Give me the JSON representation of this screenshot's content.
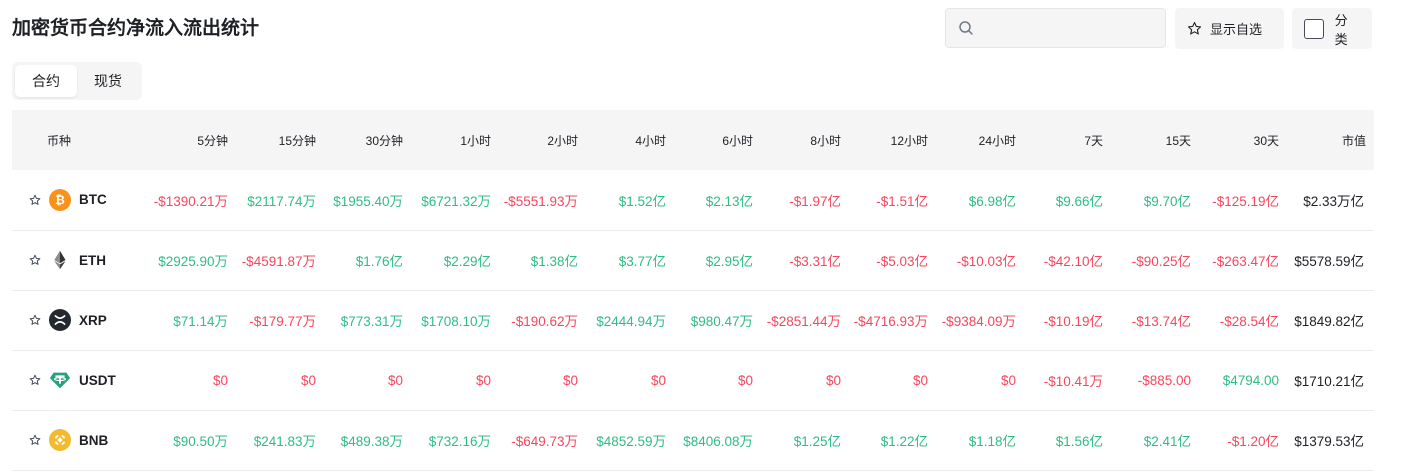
{
  "title": "加密货币合约净流入流出统计",
  "search": {
    "value": "",
    "placeholder": ""
  },
  "buttons": {
    "watchlist": "显示自选",
    "category": "分类"
  },
  "tabs": [
    {
      "label": "合约",
      "active": true
    },
    {
      "label": "现货",
      "active": false
    }
  ],
  "colors": {
    "positive": "#2ebd85",
    "negative": "#f6465d"
  },
  "table": {
    "headers": [
      "币种",
      "5分钟",
      "15分钟",
      "30分钟",
      "1小时",
      "2小时",
      "4小时",
      "6小时",
      "8小时",
      "12小时",
      "24小时",
      "7天",
      "15天",
      "30天",
      "市值"
    ],
    "rows": [
      {
        "symbol": "BTC",
        "icon": "btc-icon",
        "values": [
          "-$1390.21万",
          "$2117.74万",
          "$1955.40万",
          "$6721.32万",
          "-$5551.93万",
          "$1.52亿",
          "$2.13亿",
          "-$1.97亿",
          "-$1.51亿",
          "$6.98亿",
          "$9.66亿",
          "$9.70亿",
          "-$125.19亿"
        ],
        "signs": [
          "neg",
          "pos",
          "pos",
          "pos",
          "neg",
          "pos",
          "pos",
          "neg",
          "neg",
          "pos",
          "pos",
          "pos",
          "neg"
        ],
        "mcap": "$2.33万亿"
      },
      {
        "symbol": "ETH",
        "icon": "eth-icon",
        "values": [
          "$2925.90万",
          "-$4591.87万",
          "$1.76亿",
          "$2.29亿",
          "$1.38亿",
          "$3.77亿",
          "$2.95亿",
          "-$3.31亿",
          "-$5.03亿",
          "-$10.03亿",
          "-$42.10亿",
          "-$90.25亿",
          "-$263.47亿"
        ],
        "signs": [
          "pos",
          "neg",
          "pos",
          "pos",
          "pos",
          "pos",
          "pos",
          "neg",
          "neg",
          "neg",
          "neg",
          "neg",
          "neg"
        ],
        "mcap": "$5578.59亿"
      },
      {
        "symbol": "XRP",
        "icon": "xrp-icon",
        "values": [
          "$71.14万",
          "-$179.77万",
          "$773.31万",
          "$1708.10万",
          "-$190.62万",
          "$2444.94万",
          "$980.47万",
          "-$2851.44万",
          "-$4716.93万",
          "-$9384.09万",
          "-$10.19亿",
          "-$13.74亿",
          "-$28.54亿"
        ],
        "signs": [
          "pos",
          "neg",
          "pos",
          "pos",
          "neg",
          "pos",
          "pos",
          "neg",
          "neg",
          "neg",
          "neg",
          "neg",
          "neg"
        ],
        "mcap": "$1849.82亿"
      },
      {
        "symbol": "USDT",
        "icon": "usdt-icon",
        "values": [
          "$0",
          "$0",
          "$0",
          "$0",
          "$0",
          "$0",
          "$0",
          "$0",
          "$0",
          "$0",
          "-$10.41万",
          "-$885.00",
          "$4794.00"
        ],
        "signs": [
          "neg",
          "neg",
          "neg",
          "neg",
          "neg",
          "neg",
          "neg",
          "neg",
          "neg",
          "neg",
          "neg",
          "neg",
          "pos"
        ],
        "mcap": "$1710.21亿"
      },
      {
        "symbol": "BNB",
        "icon": "bnb-icon",
        "values": [
          "$90.50万",
          "$241.83万",
          "$489.38万",
          "$732.16万",
          "-$649.73万",
          "$4852.59万",
          "$8406.08万",
          "$1.25亿",
          "$1.22亿",
          "$1.18亿",
          "$1.56亿",
          "$2.41亿",
          "-$1.20亿"
        ],
        "signs": [
          "pos",
          "pos",
          "pos",
          "pos",
          "neg",
          "pos",
          "pos",
          "pos",
          "pos",
          "pos",
          "pos",
          "pos",
          "neg"
        ],
        "mcap": "$1379.53亿"
      }
    ]
  }
}
